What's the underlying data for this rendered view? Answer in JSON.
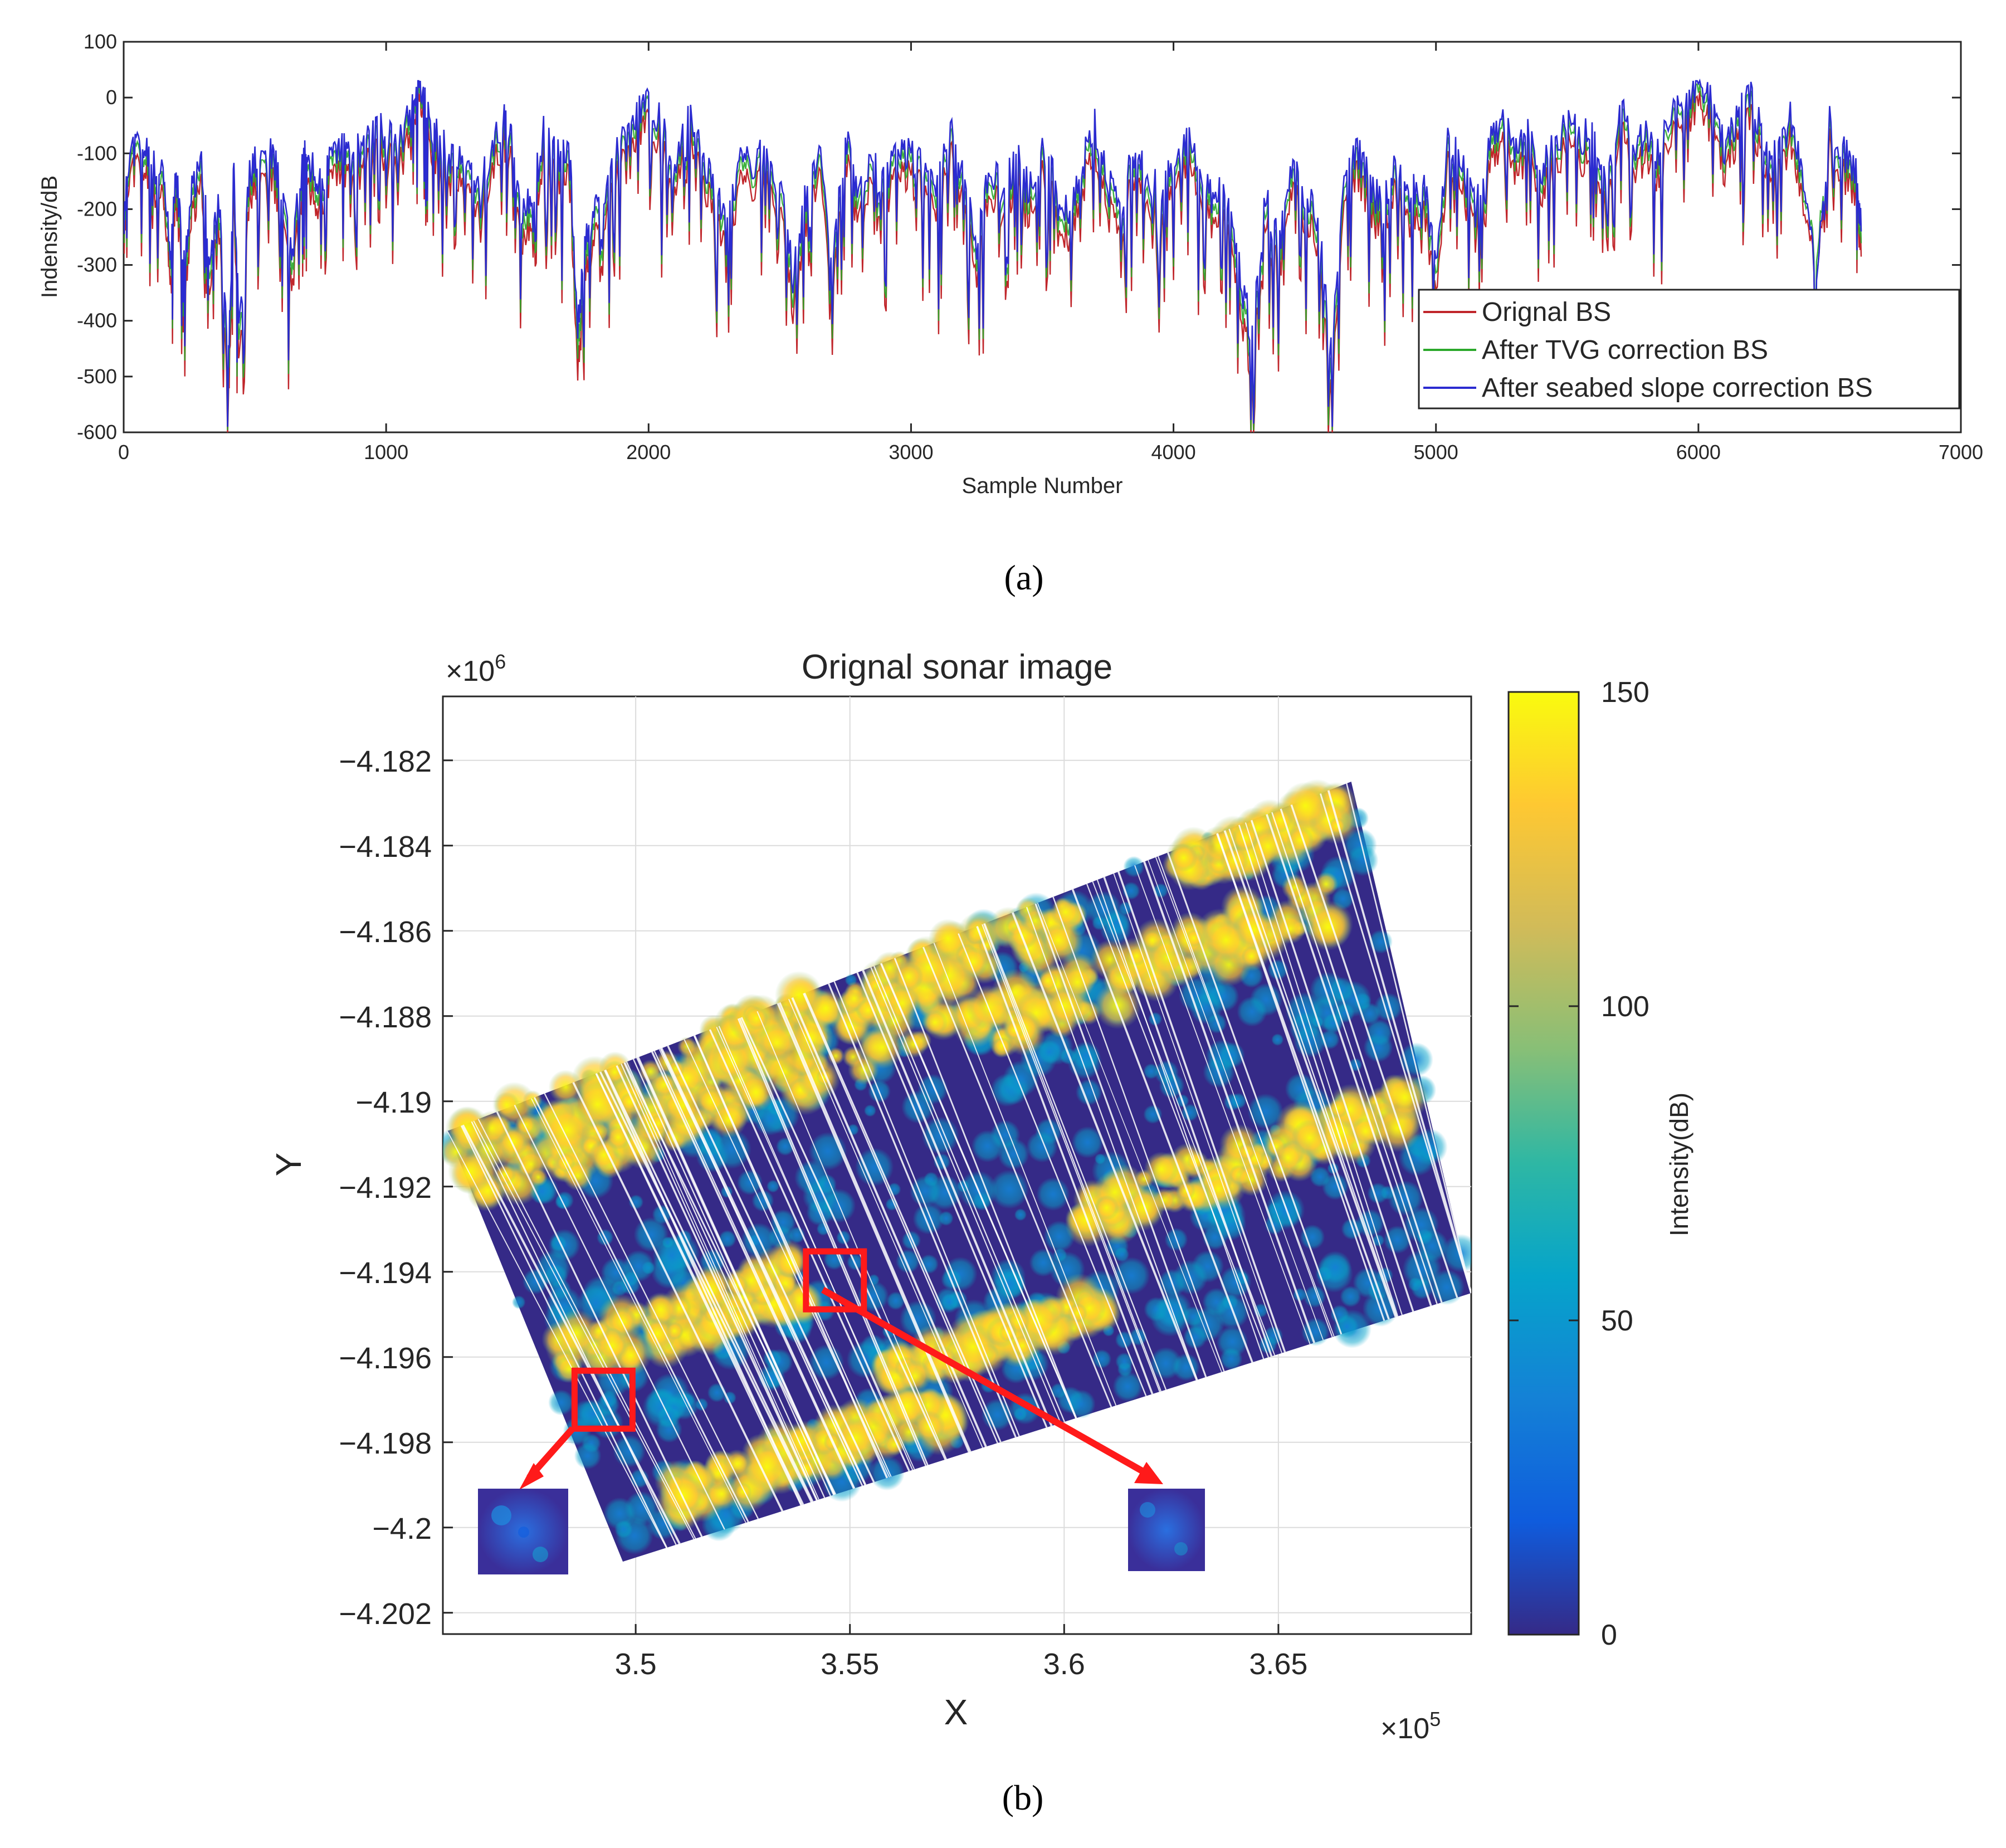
{
  "colors": {
    "original": "#c0262b",
    "tvg": "#2aa82a",
    "slope": "#2b2bd0",
    "highlight": "#ff1a1a",
    "background": "#ffffff",
    "parula_low": "#352a87",
    "parula_high": "#f9fb0e"
  },
  "chart_data": [
    {
      "id": "a",
      "type": "line",
      "panel_label": "(a)",
      "title": "",
      "xlabel": "Sample Number",
      "ylabel": "Indensity/dB",
      "xlim": [
        0,
        7000
      ],
      "ylim": [
        -600,
        100
      ],
      "xticks": [
        0,
        1000,
        2000,
        3000,
        4000,
        5000,
        6000,
        7000
      ],
      "yticks": [
        100,
        0,
        -100,
        -200,
        -300,
        -400,
        -500,
        -600
      ],
      "legend_position": "bottom-right",
      "series": [
        {
          "name": "Orignal BS",
          "color": "#c0262b",
          "offset": -25,
          "x": [
            0,
            20,
            60,
            100,
            150,
            180,
            200,
            230,
            260,
            300,
            330,
            360,
            400,
            420,
            440,
            480,
            520,
            560,
            600,
            640,
            680,
            700,
            740,
            780,
            820,
            860,
            900,
            950,
            1000,
            1050,
            1100,
            1130,
            1160,
            1200,
            1250,
            1300,
            1350,
            1400,
            1450,
            1480,
            1520,
            1560,
            1600,
            1650,
            1700,
            1730,
            1760,
            1800,
            1850,
            1900,
            1950,
            2000,
            2050,
            2100,
            2150,
            2200,
            2250,
            2300,
            2350,
            2400,
            2450,
            2500,
            2550,
            2600,
            2650,
            2700,
            2750,
            2800,
            2850,
            2900,
            2950,
            3000,
            3050,
            3100,
            3150,
            3200,
            3250,
            3300,
            3350,
            3400,
            3450,
            3500,
            3550,
            3600,
            3650,
            3700,
            3750,
            3800,
            3850,
            3900,
            3950,
            4000,
            4050,
            4100,
            4150,
            4200,
            4250,
            4300,
            4350,
            4400,
            4450,
            4500,
            4550,
            4600,
            4650,
            4700,
            4750,
            4800,
            4850,
            4900,
            4950,
            5000,
            5050,
            5100,
            5150,
            5200,
            5250,
            5300,
            5350,
            5400,
            5450,
            5500,
            5550,
            5600,
            5650,
            5700,
            5750,
            5800,
            5850,
            5900,
            5950,
            6000,
            6050,
            6100,
            6150,
            6200,
            6250,
            6300,
            6350,
            6400,
            6450,
            6500,
            6550,
            6600,
            6620
          ],
          "y": [
            -250,
            -120,
            -110,
            -130,
            -180,
            -320,
            -160,
            -340,
            -200,
            -150,
            -330,
            -200,
            -520,
            -150,
            -470,
            -160,
            -130,
            -120,
            -180,
            -330,
            -140,
            -130,
            -190,
            -150,
            -110,
            -130,
            -120,
            -60,
            -100,
            -90,
            -20,
            10,
            -60,
            -100,
            -140,
            -150,
            -200,
            -120,
            -70,
            -100,
            -260,
            -200,
            -90,
            -120,
            -140,
            -480,
            -300,
            -220,
            -180,
            -100,
            -60,
            -10,
            -80,
            -150,
            -60,
            -120,
            -190,
            -250,
            -130,
            -160,
            -110,
            -190,
            -360,
            -200,
            -120,
            -350,
            -90,
            -200,
            -150,
            -180,
            -100,
            -130,
            -160,
            -200,
            -90,
            -170,
            -320,
            -140,
            -200,
            -130,
            -190,
            -120,
            -170,
            -260,
            -150,
            -80,
            -190,
            -220,
            -120,
            -170,
            -200,
            -150,
            -90,
            -180,
            -210,
            -200,
            -350,
            -480,
            -210,
            -300,
            -150,
            -200,
            -250,
            -520,
            -180,
            -120,
            -190,
            -230,
            -140,
            -210,
            -180,
            -320,
            -90,
            -150,
            -230,
            -120,
            -70,
            -120,
            -90,
            -160,
            -110,
            -60,
            -90,
            -100,
            -180,
            -40,
            -120,
            -90,
            -130,
            -50,
            -20,
            0,
            -40,
            -120,
            -60,
            -20,
            -100,
            -140,
            -60,
            -180,
            -320,
            -70,
            -120,
            -150,
            -270
          ]
        },
        {
          "name": "After TVG correction BS",
          "color": "#2aa82a",
          "offset": -8,
          "x": [
            0,
            20,
            60,
            100,
            150,
            180,
            200,
            230,
            260,
            300,
            330,
            360,
            400,
            420,
            440,
            480,
            520,
            560,
            600,
            640,
            680,
            700,
            740,
            780,
            820,
            860,
            900,
            950,
            1000,
            1050,
            1100,
            1130,
            1160,
            1200,
            1250,
            1300,
            1350,
            1400,
            1450,
            1480,
            1520,
            1560,
            1600,
            1650,
            1700,
            1730,
            1760,
            1800,
            1850,
            1900,
            1950,
            2000,
            2050,
            2100,
            2150,
            2200,
            2250,
            2300,
            2350,
            2400,
            2450,
            2500,
            2550,
            2600,
            2650,
            2700,
            2750,
            2800,
            2850,
            2900,
            2950,
            3000,
            3050,
            3100,
            3150,
            3200,
            3250,
            3300,
            3350,
            3400,
            3450,
            3500,
            3550,
            3600,
            3650,
            3700,
            3750,
            3800,
            3850,
            3900,
            3950,
            4000,
            4050,
            4100,
            4150,
            4200,
            4250,
            4300,
            4350,
            4400,
            4450,
            4500,
            4550,
            4600,
            4650,
            4700,
            4750,
            4800,
            4850,
            4900,
            4950,
            5000,
            5050,
            5100,
            5150,
            5200,
            5250,
            5300,
            5350,
            5400,
            5450,
            5500,
            5550,
            5600,
            5650,
            5700,
            5750,
            5800,
            5850,
            5900,
            5950,
            6000,
            6050,
            6100,
            6150,
            6200,
            6250,
            6300,
            6350,
            6400,
            6450,
            6500,
            6550,
            6600,
            6620
          ],
          "y": [
            -240,
            -110,
            -95,
            -115,
            -165,
            -300,
            -145,
            -320,
            -185,
            -135,
            -310,
            -185,
            -490,
            -135,
            -445,
            -145,
            -115,
            -105,
            -165,
            -310,
            -125,
            -115,
            -175,
            -135,
            -95,
            -115,
            -105,
            -45,
            -85,
            -75,
            -5,
            15,
            -45,
            -85,
            -125,
            -135,
            -185,
            -105,
            -55,
            -85,
            -240,
            -185,
            -75,
            -105,
            -125,
            -450,
            -280,
            -200,
            -165,
            -85,
            -45,
            5,
            -65,
            -135,
            -45,
            -105,
            -175,
            -230,
            -115,
            -145,
            -95,
            -175,
            -340,
            -185,
            -105,
            -330,
            -75,
            -185,
            -135,
            -165,
            -85,
            -115,
            -145,
            -185,
            -75,
            -155,
            -300,
            -125,
            -185,
            -115,
            -175,
            -105,
            -155,
            -240,
            -135,
            -65,
            -175,
            -200,
            -105,
            -155,
            -185,
            -135,
            -75,
            -165,
            -195,
            -185,
            -330,
            -455,
            -195,
            -280,
            -135,
            -185,
            -235,
            -490,
            -165,
            -105,
            -175,
            -215,
            -125,
            -195,
            -165,
            -300,
            -75,
            -135,
            -215,
            -105,
            -55,
            -105,
            -75,
            -145,
            -95,
            -45,
            -75,
            -85,
            -165,
            -25,
            -105,
            -75,
            -115,
            -35,
            -5,
            15,
            -25,
            -105,
            -45,
            -5,
            -85,
            -125,
            -45,
            -165,
            -300,
            -55,
            -105,
            -135,
            -255
          ]
        },
        {
          "name": "After seabed slope correction BS",
          "color": "#2b2bd0",
          "offset": 0,
          "x": [
            0,
            20,
            60,
            100,
            150,
            180,
            200,
            230,
            260,
            300,
            330,
            360,
            400,
            420,
            440,
            480,
            520,
            560,
            600,
            640,
            680,
            700,
            740,
            780,
            820,
            860,
            900,
            950,
            1000,
            1050,
            1100,
            1130,
            1160,
            1200,
            1250,
            1300,
            1350,
            1400,
            1450,
            1480,
            1520,
            1560,
            1600,
            1650,
            1700,
            1730,
            1760,
            1800,
            1850,
            1900,
            1950,
            2000,
            2050,
            2100,
            2150,
            2200,
            2250,
            2300,
            2350,
            2400,
            2450,
            2500,
            2550,
            2600,
            2650,
            2700,
            2750,
            2800,
            2850,
            2900,
            2950,
            3000,
            3050,
            3100,
            3150,
            3200,
            3250,
            3300,
            3350,
            3400,
            3450,
            3500,
            3550,
            3600,
            3650,
            3700,
            3750,
            3800,
            3850,
            3900,
            3950,
            4000,
            4050,
            4100,
            4150,
            4200,
            4250,
            4300,
            4350,
            4400,
            4450,
            4500,
            4550,
            4600,
            4650,
            4700,
            4750,
            4800,
            4850,
            4900,
            4950,
            5000,
            5050,
            5100,
            5150,
            5200,
            5250,
            5300,
            5350,
            5400,
            5450,
            5500,
            5550,
            5600,
            5650,
            5700,
            5750,
            5800,
            5850,
            5900,
            5950,
            6000,
            6050,
            6100,
            6150,
            6200,
            6250,
            6300,
            6350,
            6400,
            6450,
            6500,
            6550,
            6600,
            6620
          ],
          "y": [
            -230,
            -100,
            -85,
            -105,
            -150,
            -290,
            -135,
            -300,
            -170,
            -125,
            -290,
            -170,
            -460,
            -125,
            -420,
            -135,
            -105,
            -95,
            -150,
            -290,
            -115,
            -105,
            -160,
            -125,
            -85,
            -105,
            -95,
            -35,
            -75,
            -65,
            5,
            18,
            -35,
            -75,
            -115,
            -125,
            -170,
            -95,
            -45,
            -75,
            -220,
            -170,
            -65,
            -95,
            -115,
            -420,
            -260,
            -185,
            -150,
            -75,
            -35,
            12,
            -55,
            -125,
            -35,
            -95,
            -160,
            -215,
            -105,
            -135,
            -85,
            -160,
            -320,
            -170,
            -95,
            -310,
            -65,
            -170,
            -125,
            -150,
            -75,
            -105,
            -135,
            -170,
            -65,
            -140,
            -285,
            -115,
            -170,
            -105,
            -160,
            -95,
            -140,
            -225,
            -125,
            -55,
            -160,
            -185,
            -95,
            -140,
            -170,
            -125,
            -65,
            -150,
            -180,
            -170,
            -310,
            -430,
            -180,
            -265,
            -125,
            -170,
            -220,
            -460,
            -150,
            -95,
            -160,
            -200,
            -115,
            -180,
            -150,
            -280,
            -65,
            -125,
            -200,
            -95,
            -45,
            -95,
            -65,
            -135,
            -85,
            -35,
            -65,
            -75,
            -150,
            -15,
            -95,
            -65,
            -105,
            -25,
            5,
            25,
            -15,
            -95,
            -35,
            5,
            -75,
            -115,
            -35,
            -150,
            -340,
            -45,
            -95,
            -125,
            -240
          ]
        }
      ]
    },
    {
      "id": "b",
      "type": "heatmap",
      "panel_label": "(b)",
      "title": "Orignal sonar image",
      "xlabel": "X",
      "ylabel": "Y",
      "x_multiplier": "×10",
      "x_exponent": "5",
      "y_multiplier": "×10",
      "y_exponent": "6",
      "xlim": [
        3.455,
        3.695
      ],
      "ylim": [
        -4.2025,
        -4.1805
      ],
      "xticks": [
        "3.5",
        "3.55",
        "3.6",
        "3.65"
      ],
      "xtick_values": [
        3.5,
        3.55,
        3.6,
        3.65
      ],
      "yticks": [
        "-4.182",
        "-4.184",
        "-4.186",
        "-4.188",
        "-4.19",
        "-4.192",
        "-4.194",
        "-4.196",
        "-4.198",
        "-4.2",
        "-4.202"
      ],
      "ytick_values": [
        -4.182,
        -4.184,
        -4.186,
        -4.188,
        -4.19,
        -4.192,
        -4.194,
        -4.196,
        -4.198,
        -4.2,
        -4.202
      ],
      "swath_corners": [
        [
          3.456,
          -4.1907
        ],
        [
          3.667,
          -4.1825
        ],
        [
          3.695,
          -4.1945
        ],
        [
          3.497,
          -4.2008
        ]
      ],
      "colorbar": {
        "label": "Intensity(dB)",
        "range": [
          0,
          150
        ],
        "ticks": [
          "150",
          "100",
          "50",
          "0"
        ],
        "tick_values": [
          150,
          100,
          50,
          0
        ],
        "colormap": "parula"
      },
      "highlight_boxes": [
        {
          "name": "box-left",
          "center": [
            3.4925,
            -4.197
          ]
        },
        {
          "name": "box-center",
          "center": [
            3.5465,
            -4.1942
          ]
        }
      ]
    }
  ]
}
